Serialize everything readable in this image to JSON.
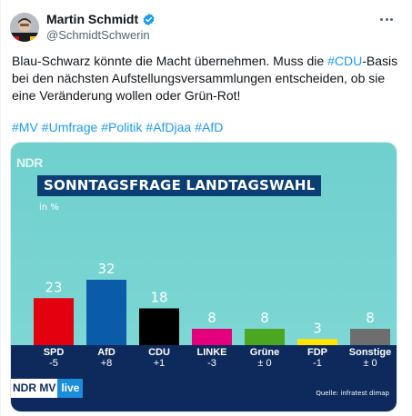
{
  "tweet": {
    "display_name": "Martin Schmidt",
    "handle": "@SchmidtSchwerin",
    "text_part1": "Blau-Schwarz könnte die Macht übernehmen. Muss die ",
    "text_link": "#CDU",
    "text_part2": "-Basis bei den nächsten Aufstellungsversammlungen entscheiden, ob sie eine Veränderung wollen oder Grün-Rot!",
    "hashtags": [
      "#MV",
      "#Umfrage",
      "#Politik",
      "#AfDjaa",
      "#AfD"
    ]
  },
  "icons": {
    "verified": "verified-badge-icon",
    "more": "more-options-icon"
  },
  "colors": {
    "link": "#1d9bf0",
    "verified": "#1d9bf0"
  },
  "chart": {
    "logo": "NDR",
    "title": "SONNTAGSFRAGE LANDTAGSWAHL",
    "unit": "in %",
    "footer_logo_ndr": "NDR MV",
    "footer_logo_live": "live",
    "source": "Quelle: infratest dimap"
  },
  "chart_data": {
    "type": "bar",
    "title": "SONNTAGSFRAGE LANDTAGSWAHL",
    "ylabel": "in %",
    "categories": [
      "SPD",
      "AfD",
      "CDU",
      "LINKE",
      "Grüne",
      "FDP",
      "Sonstige"
    ],
    "values": [
      23,
      32,
      18,
      8,
      8,
      3,
      8
    ],
    "value_labels": [
      "23",
      "32",
      "18",
      "8",
      "8",
      "3",
      "8"
    ],
    "changes": [
      "-5",
      "+8",
      "+1",
      "-3",
      "± 0",
      "-1",
      "± 0"
    ],
    "colors": [
      "#e3000f",
      "#0b5ca8",
      "#000000",
      "#e4007c",
      "#4ba620",
      "#ffe400",
      "#6e6e6e"
    ],
    "ylim": [
      0,
      32
    ],
    "grid": false,
    "legend": "none"
  }
}
